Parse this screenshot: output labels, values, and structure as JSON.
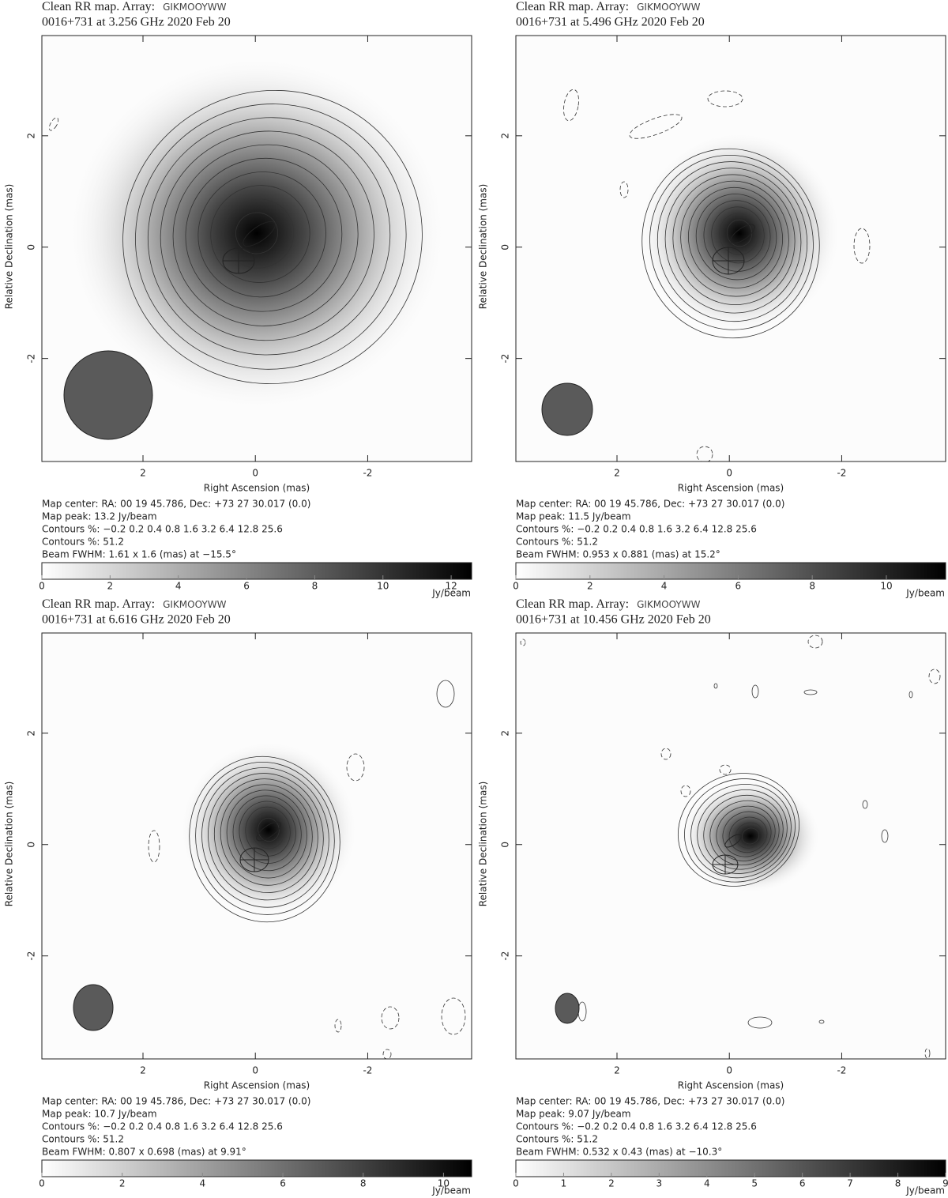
{
  "chart_data": [
    {
      "type": "contour",
      "title": "Clean RR map.  Array:",
      "array": "GIKMOOYWW",
      "subtitle": "0016+731 at 3.256 GHz 2020 Feb 20",
      "xlabel": "Right Ascension  (mas)",
      "ylabel": "Relative Declination  (mas)",
      "xlim": [
        3.8,
        -3.85
      ],
      "ylim": [
        -3.85,
        3.8
      ],
      "xticks": [
        2,
        0,
        -2
      ],
      "yticks": [
        -2,
        0,
        2
      ],
      "notes": [
        "Map center:  RA: 00 19 45.786,  Dec: +73 27 30.017 (0.0)",
        "Map peak: 13.2 Jy/beam",
        "Contours %: −0.2 0.2 0.4 0.8 1.6 3.2 6.4 12.8 25.6",
        "Contours %: 51.2",
        "Beam FWHM: 1.61 x 1.6 (mas) at −15.5°"
      ],
      "colorbar": {
        "lim": [
          0,
          12.6
        ],
        "ticks": [
          0,
          2,
          4,
          6,
          8,
          10,
          12
        ],
        "label": "Jy/beam"
      }
    },
    {
      "type": "contour",
      "title": "Clean RR map.  Array:",
      "array": "GIKMOOYWW",
      "subtitle": "0016+731 at 5.496 GHz 2020 Feb 20",
      "xlabel": "Right Ascension  (mas)",
      "ylabel": "Relative Declination  (mas)",
      "xlim": [
        3.8,
        -3.85
      ],
      "ylim": [
        -3.85,
        3.8
      ],
      "xticks": [
        2,
        0,
        -2
      ],
      "yticks": [
        -2,
        0,
        2
      ],
      "notes": [
        "Map center:  RA: 00 19 45.786,  Dec: +73 27 30.017 (0.0)",
        "Map peak: 11.5 Jy/beam",
        "Contours %: −0.2 0.2 0.4 0.8 1.6 3.2 6.4 12.8 25.6",
        "Contours %: 51.2",
        "Beam FWHM: 0.953 x 0.881 (mas) at 15.2°"
      ],
      "colorbar": {
        "lim": [
          0,
          11.6
        ],
        "ticks": [
          0,
          2,
          4,
          6,
          8,
          10
        ],
        "label": "Jy/beam"
      }
    },
    {
      "type": "contour",
      "title": "Clean RR map.  Array:",
      "array": "GIKMOOYWW",
      "subtitle": "0016+731 at 6.616 GHz 2020 Feb 20",
      "xlabel": "Right Ascension  (mas)",
      "ylabel": "Relative Declination  (mas)",
      "xlim": [
        3.8,
        -3.85
      ],
      "ylim": [
        -3.85,
        3.8
      ],
      "xticks": [
        2,
        0,
        -2
      ],
      "yticks": [
        -2,
        0,
        2
      ],
      "notes": [
        "Map center:  RA: 00 19 45.786,  Dec: +73 27 30.017 (0.0)",
        "Map peak: 10.7 Jy/beam",
        "Contours %: −0.2 0.2 0.4 0.8 1.6 3.2 6.4 12.8 25.6",
        "Contours %: 51.2",
        "Beam FWHM: 0.807 x 0.698 (mas) at 9.91°"
      ],
      "colorbar": {
        "lim": [
          0,
          10.7
        ],
        "ticks": [
          0,
          2,
          4,
          6,
          8,
          10
        ],
        "label": "Jy/beam"
      }
    },
    {
      "type": "contour",
      "title": "Clean RR map.  Array:",
      "array": "GIKMOOYWW",
      "subtitle": "0016+731 at 10.456 GHz 2020 Feb 20",
      "xlabel": "Right Ascension  (mas)",
      "ylabel": "Relative Declination  (mas)",
      "xlim": [
        3.8,
        -3.85
      ],
      "ylim": [
        -3.85,
        3.8
      ],
      "xticks": [
        2,
        0,
        -2
      ],
      "yticks": [
        -2,
        0,
        2
      ],
      "notes": [
        "Map center:  RA: 00 19 45.786,  Dec: +73 27 30.017 (0.0)",
        "Map peak: 9.07 Jy/beam",
        "Contours %: −0.2 0.2 0.4 0.8 1.6 3.2 6.4 12.8 25.6",
        "Contours %: 51.2",
        "Beam FWHM: 0.532 x 0.43 (mas) at −10.3°"
      ],
      "colorbar": {
        "lim": [
          0,
          9.0
        ],
        "ticks": [
          0,
          1,
          2,
          3,
          4,
          5,
          6,
          7,
          8,
          9
        ],
        "label": "Jy/beam"
      }
    }
  ]
}
